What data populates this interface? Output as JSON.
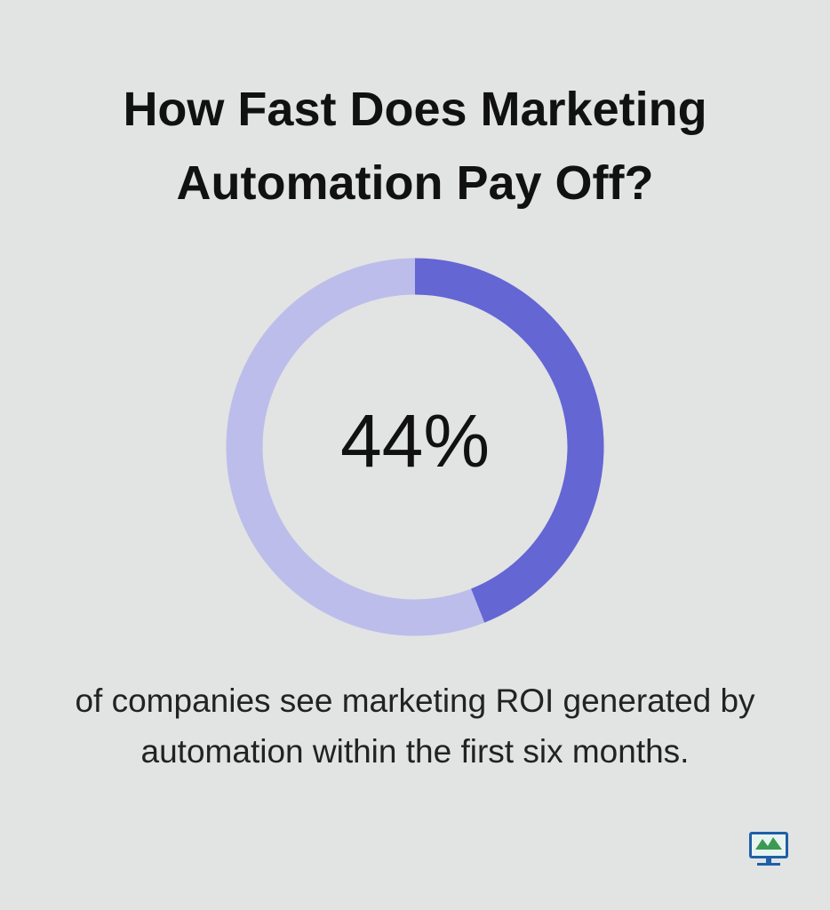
{
  "chart_data": {
    "type": "donut",
    "title": "How Fast Does Marketing Automation Pay Off?",
    "values": [
      44
    ],
    "value_labels": [
      "44%"
    ],
    "color": "#6366d3",
    "track_color": "#bcbdea",
    "caption": "of companies see marketing ROI generated by automation within the first six months."
  }
}
